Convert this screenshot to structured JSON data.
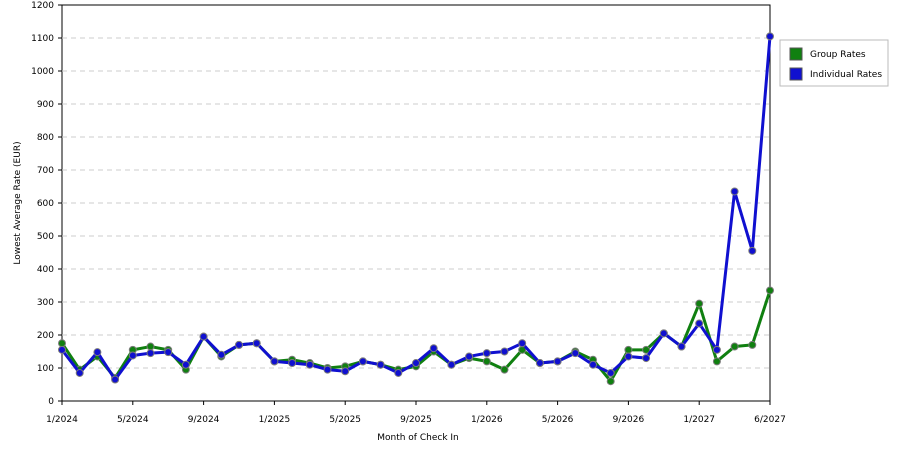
{
  "chart_data": {
    "type": "line",
    "x_label": "Month of Check In",
    "y_label": "Lowest Average Rate (EUR)",
    "categories": [
      "1/2024",
      null,
      null,
      null,
      "5/2024",
      null,
      null,
      null,
      "9/2024",
      null,
      null,
      null,
      "1/2025",
      null,
      null,
      null,
      "5/2025",
      null,
      null,
      null,
      "9/2025",
      null,
      null,
      null,
      "1/2026",
      null,
      null,
      null,
      "5/2026",
      null,
      null,
      null,
      "9/2026",
      null,
      null,
      null,
      "1/2027",
      null,
      null,
      null,
      "6/2027"
    ],
    "series": [
      {
        "name": "Group Rates",
        "color": "#108010",
        "values": [
          175,
          95,
          135,
          70,
          155,
          165,
          155,
          95,
          195,
          135,
          170,
          175,
          120,
          125,
          115,
          100,
          105,
          120,
          110,
          95,
          105,
          150,
          110,
          130,
          120,
          95,
          155,
          115,
          120,
          150,
          125,
          60,
          155,
          155,
          205,
          165,
          295,
          120,
          165,
          170,
          335
        ]
      },
      {
        "name": "Individual Rates",
        "color": "#1010d0",
        "values": [
          155,
          85,
          148,
          65,
          138,
          145,
          148,
          110,
          195,
          140,
          170,
          175,
          120,
          115,
          110,
          95,
          90,
          120,
          110,
          85,
          115,
          160,
          110,
          135,
          145,
          150,
          175,
          115,
          120,
          145,
          110,
          85,
          135,
          130,
          205,
          165,
          235,
          155,
          635,
          455,
          1105
        ]
      }
    ],
    "ylim": [
      0,
      1200
    ],
    "yticks": [
      0,
      100,
      200,
      300,
      400,
      500,
      600,
      700,
      800,
      900,
      1000,
      1100,
      1200
    ],
    "grid": true,
    "legend": "top-right"
  }
}
